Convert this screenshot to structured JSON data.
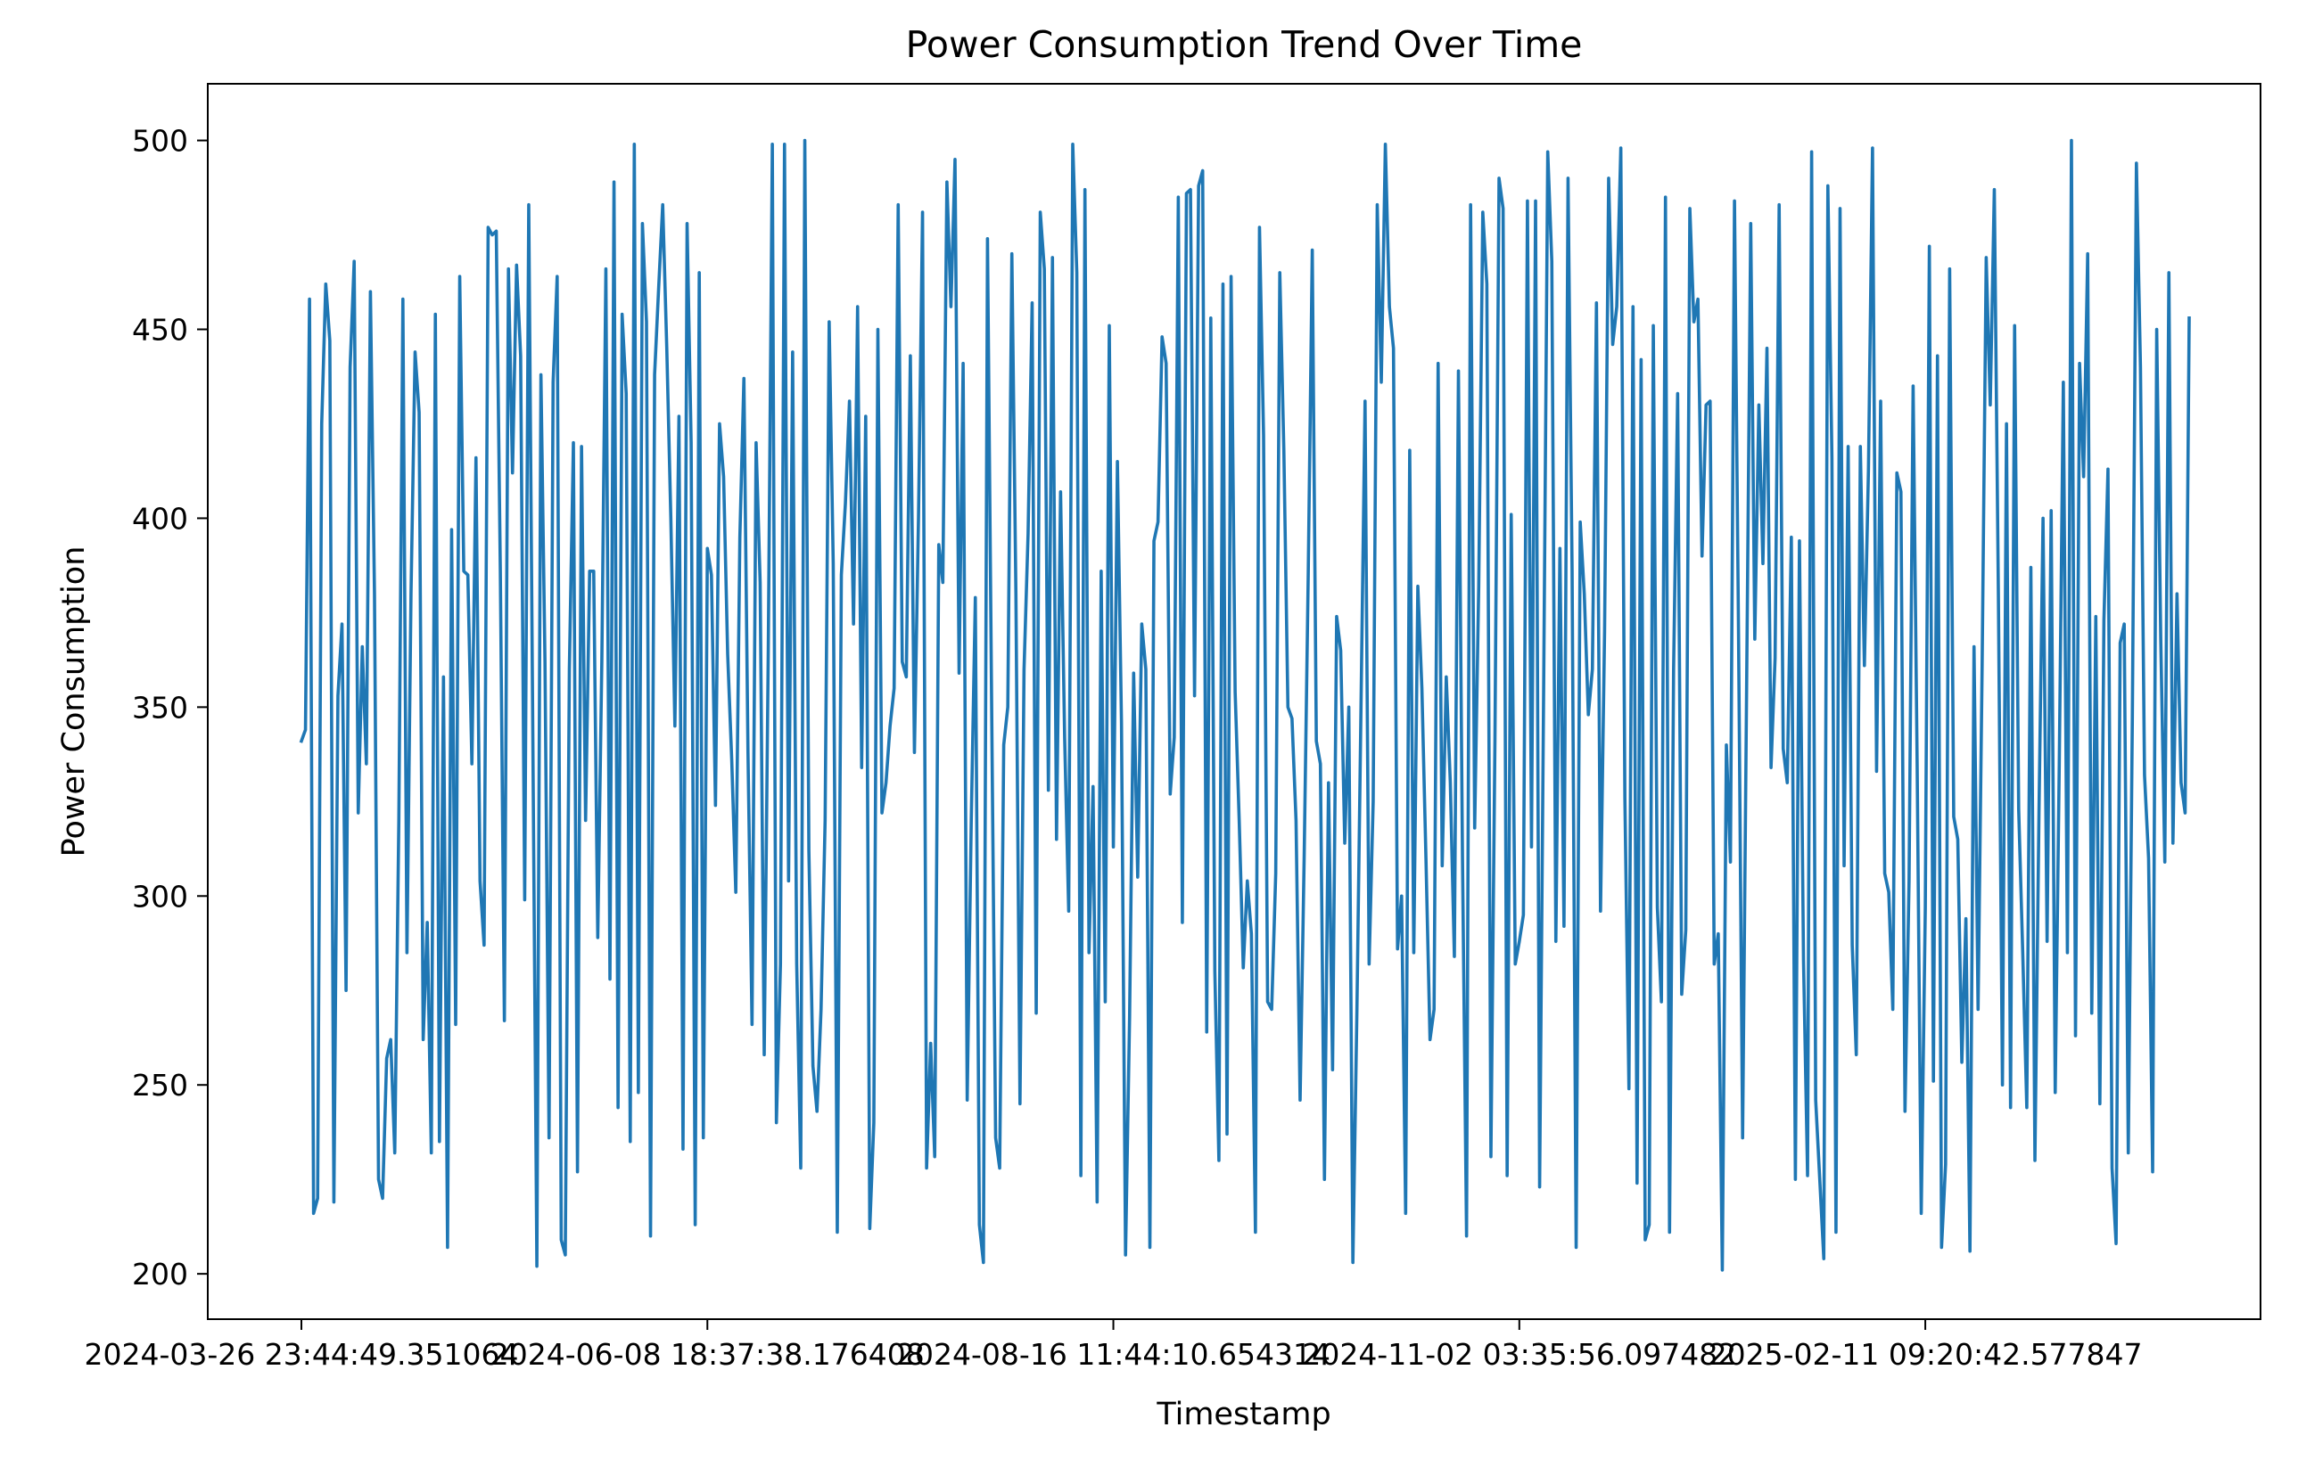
{
  "chart_data": {
    "type": "line",
    "title": "Power Consumption Trend Over Time",
    "xlabel": "Timestamp",
    "ylabel": "Power Consumption",
    "ylim": [
      188,
      515
    ],
    "yticks": [
      200,
      250,
      300,
      350,
      400,
      450,
      500
    ],
    "xticks": [
      {
        "label": "2024-03-26 23:44:49.351064",
        "index": 0
      },
      {
        "label": "2024-06-08 18:37:38.176408",
        "index": 100
      },
      {
        "label": "2024-08-16 11:44:10.654314",
        "index": 200
      },
      {
        "label": "2024-11-02 03:35:56.097482",
        "index": 300
      },
      {
        "label": "2025-02-11 09:20:42.577847",
        "index": 400
      },
      {
        "label": "",
        "index": 500
      }
    ],
    "grid": false,
    "legend": "none",
    "series": [
      {
        "color": "#1f77b4",
        "values": [
          341,
          344,
          458,
          216,
          220,
          425,
          462,
          447,
          219,
          353,
          372,
          275,
          440,
          468,
          322,
          366,
          335,
          460,
          380,
          225,
          220,
          257,
          262,
          232,
          320,
          458,
          285,
          380,
          444,
          428,
          262,
          293,
          232,
          454,
          235,
          358,
          207,
          397,
          266,
          464,
          386,
          385,
          335,
          416,
          304,
          287,
          477,
          475,
          476,
          386,
          267,
          466,
          412,
          467,
          443,
          299,
          483,
          343,
          202,
          438,
          362,
          236,
          436,
          464,
          209,
          205,
          360,
          420,
          227,
          419,
          320,
          386,
          386,
          289,
          362,
          466,
          278,
          489,
          244,
          454,
          433,
          235,
          499,
          248,
          478,
          452,
          210,
          438,
          461,
          483,
          445,
          400,
          345,
          427,
          233,
          478,
          420,
          213,
          465,
          236,
          392,
          385,
          324,
          425,
          411,
          364,
          336,
          301,
          395,
          437,
          338,
          266,
          420,
          383,
          258,
          365,
          499,
          240,
          282,
          499,
          304,
          444,
          282,
          228,
          500,
          312,
          255,
          243,
          270,
          320,
          452,
          388,
          211,
          385,
          404,
          431,
          372,
          456,
          334,
          427,
          212,
          240,
          450,
          322,
          330,
          345,
          355,
          483,
          362,
          358,
          443,
          338,
          400,
          481,
          228,
          261,
          231,
          393,
          383,
          489,
          456,
          495,
          359,
          441,
          246,
          320,
          379,
          213,
          203,
          474,
          353,
          236,
          228,
          340,
          350,
          470,
          380,
          245,
          360,
          396,
          457,
          269,
          481,
          466,
          328,
          469,
          315,
          407,
          342,
          296,
          499,
          465,
          226,
          487,
          285,
          329,
          219,
          386,
          272,
          451,
          313,
          415,
          346,
          205,
          268,
          359,
          305,
          372,
          360,
          207,
          394,
          399,
          448,
          441,
          327,
          342,
          485,
          293,
          486,
          487,
          353,
          488,
          492,
          264,
          453,
          280,
          230,
          462,
          237,
          464,
          354,
          320,
          281,
          304,
          290,
          211,
          477,
          422,
          272,
          270,
          306,
          465,
          418,
          350,
          347,
          320,
          246,
          310,
          385,
          471,
          341,
          335,
          225,
          330,
          254,
          374,
          365,
          314,
          350,
          203,
          270,
          350,
          431,
          282,
          325,
          483,
          436,
          499,
          456,
          445,
          286,
          300,
          216,
          418,
          285,
          382,
          355,
          310,
          262,
          270,
          441,
          308,
          358,
          330,
          284,
          439,
          310,
          210,
          483,
          318,
          382,
          481,
          462,
          231,
          342,
          490,
          482,
          226,
          401,
          282,
          288,
          295,
          484,
          313,
          484,
          223,
          356,
          497,
          468,
          288,
          392,
          292,
          490,
          386,
          207,
          399,
          380,
          348,
          360,
          457,
          296,
          370,
          490,
          446,
          456,
          498,
          326,
          249,
          456,
          224,
          442,
          209,
          213,
          451,
          297,
          272,
          485,
          211,
          360,
          433,
          274,
          291,
          482,
          452,
          458,
          390,
          430,
          431,
          282,
          290,
          201,
          340,
          309,
          484,
          369,
          236,
          357,
          478,
          368,
          430,
          388,
          445,
          334,
          363,
          483,
          339,
          330,
          395,
          225,
          394,
          283,
          226,
          497,
          246,
          225,
          204,
          488,
          416,
          211,
          482,
          308,
          419,
          287,
          258,
          419,
          361,
          413,
          498,
          333,
          431,
          306,
          301,
          270,
          412,
          407,
          243,
          304,
          435,
          334,
          216,
          297,
          472,
          251,
          443,
          207,
          229,
          466,
          321,
          315,
          256,
          294,
          206,
          366,
          270,
          361,
          469,
          430,
          487,
          380,
          250,
          425,
          244,
          451,
          323,
          285,
          244,
          387,
          230,
          322,
          400,
          288,
          402,
          248,
          335,
          436,
          285,
          500,
          263,
          441,
          411,
          470,
          269,
          374,
          245,
          373,
          413,
          228,
          208,
          367,
          372,
          232,
          347,
          494,
          440,
          332,
          310,
          227,
          450,
          368,
          309,
          465,
          314,
          380,
          330,
          322,
          453
        ]
      }
    ]
  }
}
